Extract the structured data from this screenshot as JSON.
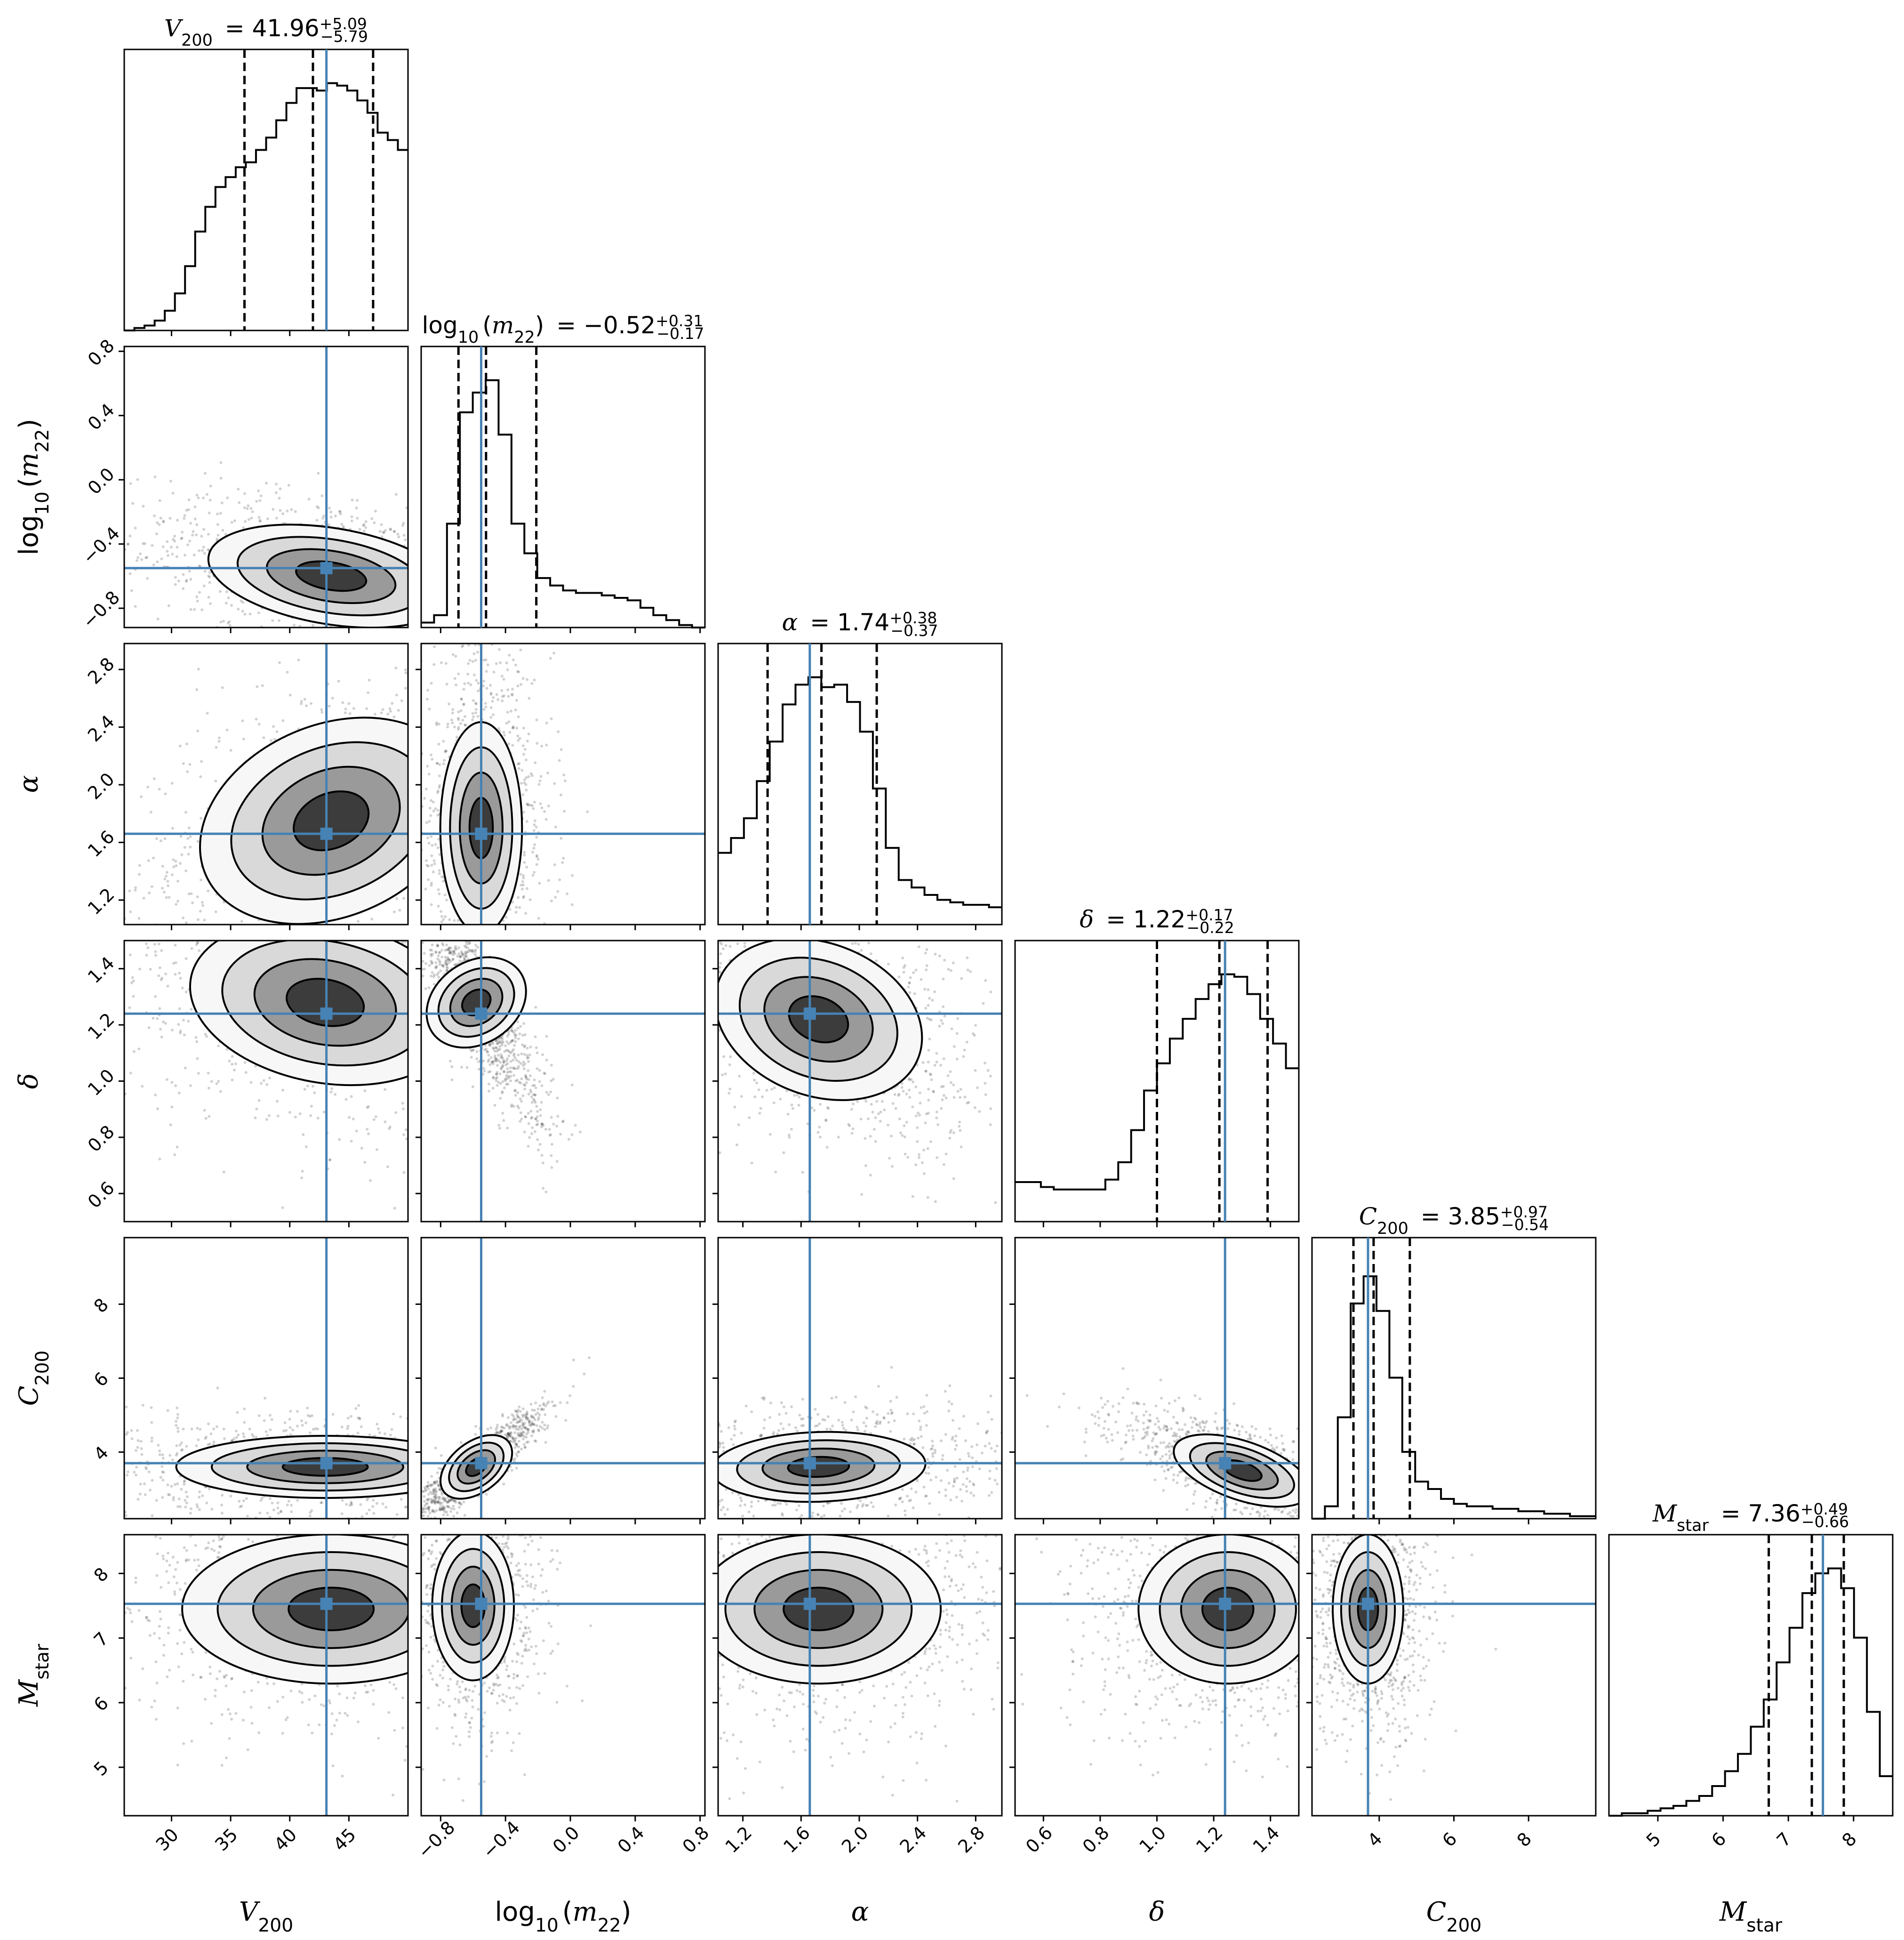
{
  "figure": {
    "type": "corner plot"
  },
  "colors": {
    "truth_line": "#4682b4",
    "histogram": "#000000",
    "quantile_line": "#000000",
    "contour": "#000000",
    "scatter_points": "#000000"
  },
  "parameters": [
    {
      "key": "V200",
      "label_main": "V",
      "label_sub": "200",
      "label_prefix": "",
      "label_suffix": "",
      "title_main": "V",
      "title_sub": "200",
      "title_prefix": "",
      "title_suffix": "",
      "median_text": "41.96",
      "err_plus": "+5.09",
      "err_minus": "−5.79",
      "median": 41.96,
      "q16": 36.17,
      "q84": 47.05,
      "truth": 43.1,
      "range": [
        26,
        50
      ],
      "ticks": [
        30,
        35,
        40,
        45
      ],
      "tick_labels": [
        "30",
        "35",
        "40",
        "45"
      ]
    },
    {
      "key": "log10_m22",
      "label_main": "",
      "label_sub": "10",
      "label_prefix": "log",
      "label_suffix": "(m",
      "label_suffix_sub": "22",
      "title_prefix": "log",
      "title_main": "",
      "title_sub": "10",
      "title_suffix": "(m",
      "title_suffix_sub": "22",
      "median_text": "−0.52",
      "err_plus": "+0.31",
      "err_minus": "−0.17",
      "median": -0.52,
      "q16": -0.69,
      "q84": -0.21,
      "truth": -0.55,
      "range": [
        -0.92,
        0.83
      ],
      "ticks": [
        -0.8,
        -0.4,
        0.0,
        0.4,
        0.8
      ],
      "tick_labels": [
        "−0.8",
        "−0.4",
        "0.0",
        "0.4",
        "0.8"
      ]
    },
    {
      "key": "alpha",
      "label_main": "α",
      "label_sub": "",
      "label_prefix": "",
      "label_suffix": "",
      "title_main": "α",
      "title_sub": "",
      "title_prefix": "",
      "title_suffix": "",
      "median_text": "1.74",
      "err_plus": "+0.38",
      "err_minus": "−0.37",
      "median": 1.74,
      "q16": 1.37,
      "q84": 2.12,
      "truth": 1.66,
      "range": [
        1.03,
        2.98
      ],
      "ticks": [
        1.2,
        1.6,
        2.0,
        2.4,
        2.8
      ],
      "tick_labels": [
        "1.2",
        "1.6",
        "2.0",
        "2.4",
        "2.8"
      ]
    },
    {
      "key": "delta",
      "label_main": "δ",
      "label_sub": "",
      "label_prefix": "",
      "label_suffix": "",
      "title_main": "δ",
      "title_sub": "",
      "title_prefix": "",
      "title_suffix": "",
      "median_text": "1.22",
      "err_plus": "+0.17",
      "err_minus": "−0.22",
      "median": 1.22,
      "q16": 1.0,
      "q84": 1.39,
      "truth": 1.24,
      "range": [
        0.5,
        1.5
      ],
      "ticks": [
        0.6,
        0.8,
        1.0,
        1.2,
        1.4
      ],
      "tick_labels": [
        "0.6",
        "0.8",
        "1.0",
        "1.2",
        "1.4"
      ]
    },
    {
      "key": "C200",
      "label_main": "C",
      "label_sub": "200",
      "label_prefix": "",
      "label_suffix": "",
      "title_main": "C",
      "title_sub": "200",
      "title_prefix": "",
      "title_suffix": "",
      "median_text": "3.85",
      "err_plus": "+0.97",
      "err_minus": "−0.54",
      "median": 3.85,
      "q16": 3.31,
      "q84": 4.82,
      "truth": 3.7,
      "range": [
        2.2,
        9.8
      ],
      "ticks": [
        4,
        6,
        8
      ],
      "tick_labels": [
        "4",
        "6",
        "8"
      ]
    },
    {
      "key": "Mstar",
      "label_main": "M",
      "label_sub": "star",
      "label_prefix": "",
      "label_suffix": "",
      "title_main": "M",
      "title_sub": "star",
      "title_prefix": "",
      "title_suffix": "",
      "median_text": "7.36",
      "err_plus": "+0.49",
      "err_minus": "−0.66",
      "median": 7.36,
      "q16": 6.7,
      "q84": 7.85,
      "truth": 7.53,
      "range": [
        4.25,
        8.6
      ],
      "ticks": [
        5,
        6,
        7,
        8
      ],
      "tick_labels": [
        "5",
        "6",
        "7",
        "8"
      ]
    }
  ],
  "chart_data": {
    "type": "histogram",
    "description_kind": "corner plot of 1D marginal histograms and 2D joint densities",
    "axis_labels": [
      "V200",
      "log10(m22)",
      "α",
      "δ",
      "C200",
      "Mstar"
    ],
    "titles": [
      "V200 = 41.96 +5.09 −5.79",
      "log10(m22) = −0.52 +0.31 −0.17",
      "α = 1.74 +0.38 −0.37",
      "δ = 1.22 +0.17 −0.22",
      "C200 = 3.85 +0.97 −0.54",
      "Mstar = 7.36 +0.49 −0.66"
    ],
    "marginals": [
      {
        "param": "V200",
        "bin_edges_range": [
          26,
          50
        ],
        "counts": [
          0,
          0.01,
          0.02,
          0.04,
          0.08,
          0.15,
          0.26,
          0.4,
          0.5,
          0.58,
          0.62,
          0.66,
          0.68,
          0.73,
          0.78,
          0.85,
          0.92,
          0.98,
          0.98,
          0.97,
          1.0,
          0.99,
          0.97,
          0.93,
          0.88,
          0.8,
          0.77,
          0.73
        ]
      },
      {
        "param": "log10(m22)",
        "bin_edges_range": [
          -0.92,
          0.83
        ],
        "counts": [
          0.02,
          0.05,
          0.42,
          0.87,
          0.95,
          1.0,
          0.78,
          0.42,
          0.3,
          0.2,
          0.17,
          0.15,
          0.14,
          0.14,
          0.13,
          0.12,
          0.11,
          0.08,
          0.05,
          0.03,
          0.01,
          0.0
        ]
      },
      {
        "param": "α",
        "bin_edges_range": [
          1.03,
          2.98
        ],
        "counts": [
          0.29,
          0.35,
          0.43,
          0.58,
          0.74,
          0.89,
          0.97,
          1.0,
          0.96,
          0.97,
          0.9,
          0.78,
          0.55,
          0.31,
          0.18,
          0.15,
          0.12,
          0.1,
          0.09,
          0.08,
          0.08,
          0.07
        ]
      },
      {
        "param": "δ",
        "bin_edges_range": [
          0.5,
          1.5
        ],
        "counts": [
          0.16,
          0.16,
          0.14,
          0.13,
          0.13,
          0.13,
          0.13,
          0.17,
          0.24,
          0.37,
          0.53,
          0.64,
          0.74,
          0.82,
          0.9,
          0.96,
          1.0,
          0.99,
          0.92,
          0.82,
          0.72,
          0.62
        ]
      },
      {
        "param": "C200",
        "bin_edges_range": [
          2.2,
          9.8
        ],
        "counts": [
          0.0,
          0.05,
          0.41,
          0.87,
          0.98,
          0.84,
          0.57,
          0.27,
          0.15,
          0.12,
          0.08,
          0.06,
          0.05,
          0.05,
          0.04,
          0.04,
          0.03,
          0.03,
          0.02,
          0.02,
          0.01,
          0.01
        ]
      },
      {
        "param": "Mstar",
        "bin_edges_range": [
          4.25,
          8.6
        ],
        "counts": [
          0.0,
          0.01,
          0.01,
          0.02,
          0.03,
          0.04,
          0.06,
          0.08,
          0.12,
          0.18,
          0.25,
          0.36,
          0.47,
          0.62,
          0.76,
          0.9,
          0.98,
          1.0,
          0.92,
          0.72,
          0.42,
          0.16
        ]
      }
    ],
    "quantiles": [
      0.16,
      0.5,
      0.84
    ],
    "truth_values": {
      "V200": 43.1,
      "log10(m22)": -0.55,
      "α": 1.66,
      "δ": 1.24,
      "C200": 3.7,
      "Mstar": 7.53
    },
    "joint_peaks": [
      {
        "x": "V200",
        "y": "log10(m22)",
        "peak": [
          43.5,
          -0.6
        ],
        "spread": [
          5.0,
          0.15
        ],
        "correlation": -0.4
      },
      {
        "x": "V200",
        "y": "α",
        "peak": [
          43.5,
          1.75
        ],
        "spread": [
          5.5,
          0.35
        ],
        "correlation": 0.55
      },
      {
        "x": "log10(m22)",
        "y": "α",
        "peak": [
          -0.55,
          1.7
        ],
        "spread": [
          0.12,
          0.35
        ],
        "correlation": 0.0
      },
      {
        "x": "α",
        "y": "δ",
        "peak": [
          1.72,
          1.22
        ],
        "spread": [
          0.35,
          0.14
        ],
        "correlation": -0.5
      },
      {
        "x": "V200",
        "y": "δ",
        "peak": [
          43.0,
          1.28
        ],
        "spread": [
          5.5,
          0.14
        ],
        "correlation": -0.3
      },
      {
        "x": "log10(m22)",
        "y": "δ",
        "peak": [
          -0.58,
          1.28
        ],
        "spread": [
          0.12,
          0.12
        ],
        "correlation": -0.85
      },
      {
        "x": "V200",
        "y": "C200",
        "peak": [
          43.0,
          3.6
        ],
        "spread": [
          6.0,
          0.4
        ],
        "correlation": 0.0
      },
      {
        "x": "log10(m22)",
        "y": "C200",
        "peak": [
          -0.58,
          3.6
        ],
        "spread": [
          0.12,
          0.45
        ],
        "correlation": 0.9
      },
      {
        "x": "α",
        "y": "C200",
        "peak": [
          1.72,
          3.6
        ],
        "spread": [
          0.35,
          0.45
        ],
        "correlation": 0.1
      },
      {
        "x": "δ",
        "y": "C200",
        "peak": [
          1.3,
          3.5
        ],
        "spread": [
          0.12,
          0.45
        ],
        "correlation": -0.7
      },
      {
        "x": "V200",
        "y": "Mstar",
        "peak": [
          43.5,
          7.45
        ],
        "spread": [
          6.0,
          0.55
        ],
        "correlation": 0.0
      },
      {
        "x": "log10(m22)",
        "y": "Mstar",
        "peak": [
          -0.6,
          7.5
        ],
        "spread": [
          0.12,
          0.55
        ],
        "correlation": 0.0
      },
      {
        "x": "α",
        "y": "Mstar",
        "peak": [
          1.72,
          7.45
        ],
        "spread": [
          0.4,
          0.55
        ],
        "correlation": 0.0
      },
      {
        "x": "δ",
        "y": "Mstar",
        "peak": [
          1.25,
          7.45
        ],
        "spread": [
          0.15,
          0.55
        ],
        "correlation": 0.0
      },
      {
        "x": "C200",
        "y": "Mstar",
        "peak": [
          3.7,
          7.45
        ],
        "spread": [
          0.45,
          0.55
        ],
        "correlation": 0.0
      }
    ]
  }
}
